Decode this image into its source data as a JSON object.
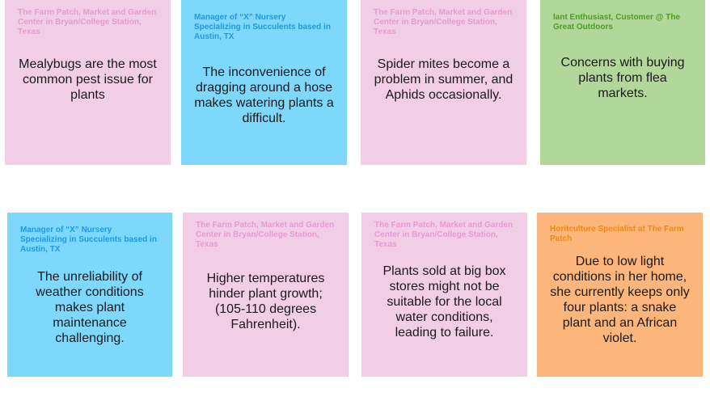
{
  "colors": {
    "pink": "#f2cde6",
    "blue": "#7dd8fb",
    "green": "#b1d89a",
    "orange": "#fcb57a"
  },
  "notes": [
    {
      "author": "The Farm Patch, Market and Garden Center in Bryan/College Station, Texas",
      "body": "Mealybugs are the most common pest issue for plants",
      "color": "pink"
    },
    {
      "author": "Manager of “X” Nursery Specializing in Succulents based in Austin, TX",
      "body": "The inconvenience of dragging around a hose makes watering plants a difficult.",
      "color": "blue"
    },
    {
      "author": "The Farm Patch, Market and Garden Center in Bryan/College Station, Texas",
      "body": "Spider mites become a problem in summer, and Aphids occasionally.",
      "color": "pink"
    },
    {
      "author": "lant Enthusiast, Customer @ The Great Outdoors",
      "body": "Concerns with buying plants from flea markets.",
      "color": "green"
    },
    {
      "author": "Manager of “X” Nursery Specializing in Succulents based in Austin, TX",
      "body": "The unreliability of weather conditions makes plant maintenance challenging.",
      "color": "blue"
    },
    {
      "author": "The Farm Patch, Market and Garden Center in Bryan/College Station, Texas",
      "body": "Higher temperatures hinder plant growth; (105-110 degrees Fahrenheit).",
      "color": "pink"
    },
    {
      "author": "The Farm Patch, Market and Garden Center in Bryan/College Station, Texas",
      "body": "Plants sold at big box stores might not be suitable for the local water conditions, leading to failure.",
      "color": "pink"
    },
    {
      "author": "Horitculture Specialist at The Farm Patch",
      "body": "Due to low light conditions in her home, she currently keeps only four plants: a snake plant and an African violet.",
      "color": "orange"
    }
  ]
}
